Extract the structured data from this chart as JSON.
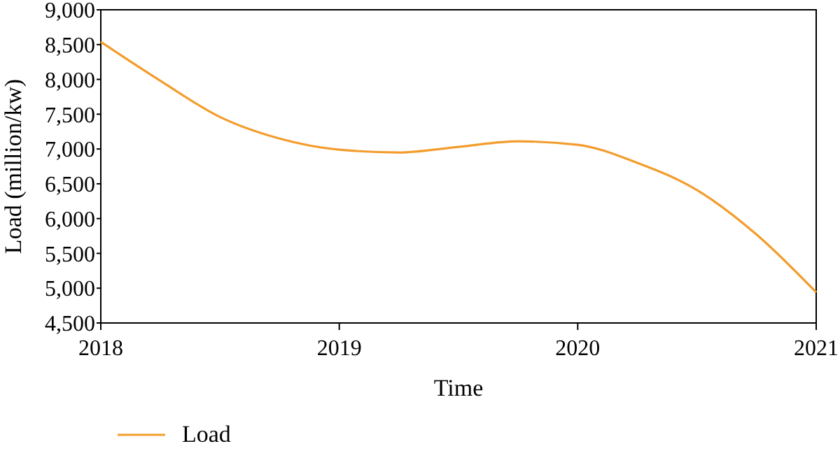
{
  "chart_data": {
    "type": "line",
    "xlabel": "Time",
    "ylabel": "Load (million/kw)",
    "x": [
      2018,
      2018.25,
      2018.5,
      2018.75,
      2019,
      2019.25,
      2019.5,
      2019.75,
      2020,
      2020.25,
      2020.5,
      2020.75,
      2021
    ],
    "series": [
      {
        "name": "Load",
        "color": "#f39c2c",
        "values": [
          8540,
          7980,
          7460,
          7150,
          6990,
          6950,
          7030,
          7110,
          7060,
          6800,
          6410,
          5770,
          4940
        ]
      }
    ],
    "xlim": [
      2018,
      2021
    ],
    "xticks": [
      2018,
      2019,
      2020,
      2021
    ],
    "ylim": [
      4500,
      9000
    ],
    "yticks": [
      {
        "value": 4500,
        "label": "4,500"
      },
      {
        "value": 5000,
        "label": "5,000"
      },
      {
        "value": 5500,
        "label": "5,500"
      },
      {
        "value": 6000,
        "label": "6,000"
      },
      {
        "value": 6500,
        "label": "6,500"
      },
      {
        "value": 7000,
        "label": "7,000"
      },
      {
        "value": 7500,
        "label": "7,500"
      },
      {
        "value": 8000,
        "label": "8,000"
      },
      {
        "value": 8500,
        "label": "8,500"
      },
      {
        "value": 9000,
        "label": "9,000"
      }
    ],
    "legend": "bottom left",
    "grid": false,
    "marker": "none",
    "line_style": "solid"
  }
}
